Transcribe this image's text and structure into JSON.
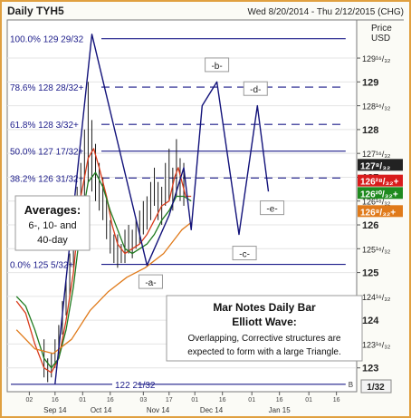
{
  "chart_data": {
    "type": "line",
    "title": "Daily TYH5",
    "date_range": "Wed 8/20/2014 - Thu 2/12/2015 (CHG)",
    "units_label": "Price\nUSD",
    "y_scale_note": "1/32",
    "ylim": [
      122.5,
      130.3
    ],
    "y_ticks": [
      {
        "value": 123,
        "label": "123"
      },
      {
        "value": 123.5,
        "label": "123¹⁶/₃₂"
      },
      {
        "value": 124,
        "label": "124"
      },
      {
        "value": 124.5,
        "label": "124¹⁶/₃₂"
      },
      {
        "value": 125,
        "label": "125"
      },
      {
        "value": 125.5,
        "label": "125¹⁶/₃₂"
      },
      {
        "value": 126,
        "label": "126"
      },
      {
        "value": 126.5,
        "label": "126¹⁶/₃₂"
      },
      {
        "value": 127,
        "label": "127"
      },
      {
        "value": 127.5,
        "label": "127¹⁶/₃₂"
      },
      {
        "value": 128,
        "label": "128"
      },
      {
        "value": 128.5,
        "label": "128¹⁶/₃₂"
      },
      {
        "value": 129,
        "label": "129"
      },
      {
        "value": 129.5,
        "label": "129¹⁶/₃₂"
      }
    ],
    "x_ticks": [
      {
        "day": 12,
        "label": "02"
      },
      {
        "day": 26,
        "label": "16"
      },
      {
        "day": 41,
        "label": "01"
      },
      {
        "day": 56,
        "label": "16"
      },
      {
        "day": 74,
        "label": "03"
      },
      {
        "day": 88,
        "label": "17"
      },
      {
        "day": 102,
        "label": "01"
      },
      {
        "day": 117,
        "label": "16"
      },
      {
        "day": 133,
        "label": "01"
      },
      {
        "day": 148,
        "label": "16"
      },
      {
        "day": 164,
        "label": "01"
      },
      {
        "day": 179,
        "label": "16"
      }
    ],
    "month_labels": [
      {
        "day": 26,
        "label": "Sep 14"
      },
      {
        "day": 51,
        "label": "Oct 14"
      },
      {
        "day": 82,
        "label": "Nov 14"
      },
      {
        "day": 111,
        "label": "Dec 14"
      },
      {
        "day": 148,
        "label": "Jan 15"
      }
    ],
    "xlim": [
      0,
      190
    ],
    "fib_levels": [
      {
        "pct": "100.0%",
        "price_label": "129 29/32",
        "value": 129.906,
        "style": "solid",
        "end_day": 184
      },
      {
        "pct": "78.6%",
        "price_label": "128 28/32+",
        "value": 128.891,
        "style": "dashed",
        "end_day": 184
      },
      {
        "pct": "61.8%",
        "price_label": "128 3/32+",
        "value": 128.109,
        "style": "dashed",
        "end_day": 184
      },
      {
        "pct": "50.0%",
        "price_label": "127 17/32+",
        "value": 127.547,
        "style": "solid",
        "end_day": 184
      },
      {
        "pct": "38.2%",
        "price_label": "126 31/32+",
        "value": 126.984,
        "style": "dashed",
        "end_day": 184
      },
      {
        "pct": "0.0%",
        "price_label": "125 5/32+",
        "value": 125.172,
        "style": "solid",
        "end_day": 184
      },
      {
        "pct": "",
        "price_label": "122 21/32",
        "value": 122.656,
        "style": "solid",
        "end_day": 184
      }
    ],
    "b_marker_label": "B",
    "series": [
      {
        "name": "Elliott wave path",
        "color": "#12127a",
        "points": [
          [
            26,
            122.66
          ],
          [
            46,
            130.0
          ],
          [
            76,
            125.15
          ],
          [
            88,
            126.2
          ],
          [
            96,
            127.2
          ],
          [
            100,
            125.9
          ],
          [
            106,
            128.5
          ],
          [
            114,
            129.0
          ],
          [
            126,
            125.8
          ],
          [
            136,
            128.5
          ],
          [
            142,
            126.7
          ]
        ]
      },
      {
        "name": "6-day average",
        "color": "#d93a1a",
        "points": [
          [
            5,
            124.4
          ],
          [
            10,
            124.15
          ],
          [
            15,
            123.5
          ],
          [
            20,
            123.0
          ],
          [
            24,
            122.9
          ],
          [
            28,
            123.2
          ],
          [
            32,
            124.0
          ],
          [
            36,
            125.0
          ],
          [
            40,
            126.6
          ],
          [
            44,
            127.4
          ],
          [
            47,
            127.6
          ],
          [
            50,
            127.2
          ],
          [
            54,
            126.6
          ],
          [
            57,
            126.0
          ],
          [
            60,
            125.6
          ],
          [
            64,
            125.4
          ],
          [
            68,
            125.5
          ],
          [
            72,
            125.6
          ],
          [
            76,
            125.8
          ],
          [
            80,
            126.1
          ],
          [
            84,
            126.4
          ],
          [
            88,
            126.5
          ],
          [
            91,
            127.0
          ],
          [
            93,
            127.2
          ],
          [
            95,
            126.9
          ],
          [
            97,
            126.6
          ],
          [
            100,
            126.6
          ]
        ]
      },
      {
        "name": "10-day average",
        "color": "#1e7a1e",
        "points": [
          [
            5,
            124.5
          ],
          [
            10,
            124.3
          ],
          [
            15,
            123.8
          ],
          [
            20,
            123.2
          ],
          [
            24,
            123.0
          ],
          [
            28,
            123.2
          ],
          [
            32,
            123.8
          ],
          [
            36,
            124.7
          ],
          [
            40,
            126.0
          ],
          [
            44,
            126.9
          ],
          [
            48,
            127.1
          ],
          [
            52,
            126.8
          ],
          [
            56,
            126.3
          ],
          [
            60,
            125.9
          ],
          [
            64,
            125.5
          ],
          [
            68,
            125.4
          ],
          [
            72,
            125.5
          ],
          [
            76,
            125.6
          ],
          [
            80,
            125.8
          ],
          [
            84,
            126.1
          ],
          [
            88,
            126.3
          ],
          [
            92,
            126.6
          ],
          [
            96,
            126.6
          ],
          [
            100,
            126.5
          ]
        ]
      },
      {
        "name": "40-day average",
        "color": "#e07a1a",
        "points": [
          [
            5,
            123.8
          ],
          [
            15,
            123.4
          ],
          [
            25,
            123.3
          ],
          [
            35,
            123.6
          ],
          [
            45,
            124.2
          ],
          [
            55,
            124.6
          ],
          [
            65,
            124.9
          ],
          [
            75,
            125.1
          ],
          [
            85,
            125.4
          ],
          [
            95,
            125.9
          ],
          [
            100,
            126.05
          ]
        ]
      }
    ],
    "ohlc_bars": [
      [
        20,
        123.6,
        122.8
      ],
      [
        22,
        123.2,
        122.7
      ],
      [
        24,
        123.3,
        122.8
      ],
      [
        26,
        123.6,
        123.0
      ],
      [
        28,
        123.9,
        123.3
      ],
      [
        30,
        124.4,
        123.7
      ],
      [
        32,
        124.9,
        124.1
      ],
      [
        34,
        125.4,
        124.5
      ],
      [
        36,
        126.2,
        125.1
      ],
      [
        38,
        126.8,
        125.7
      ],
      [
        40,
        127.3,
        126.1
      ],
      [
        42,
        128.0,
        126.6
      ],
      [
        44,
        129.0,
        126.9
      ],
      [
        46,
        128.2,
        126.7
      ],
      [
        48,
        127.7,
        126.5
      ],
      [
        50,
        127.3,
        126.3
      ],
      [
        52,
        127.0,
        126.1
      ],
      [
        54,
        126.6,
        125.7
      ],
      [
        56,
        126.1,
        125.4
      ],
      [
        58,
        125.8,
        125.2
      ],
      [
        60,
        125.8,
        125.1
      ],
      [
        62,
        125.6,
        125.2
      ],
      [
        64,
        125.9,
        125.2
      ],
      [
        66,
        126.0,
        125.4
      ],
      [
        68,
        125.9,
        125.3
      ],
      [
        70,
        126.1,
        125.5
      ],
      [
        72,
        126.3,
        125.6
      ],
      [
        74,
        126.5,
        125.8
      ],
      [
        76,
        126.6,
        125.9
      ],
      [
        78,
        126.9,
        126.1
      ],
      [
        80,
        127.2,
        126.4
      ],
      [
        82,
        126.9,
        126.1
      ],
      [
        84,
        126.8,
        126.0
      ],
      [
        86,
        127.3,
        126.4
      ],
      [
        88,
        127.6,
        126.5
      ],
      [
        90,
        127.2,
        126.3
      ],
      [
        92,
        127.8,
        126.6
      ],
      [
        94,
        127.4,
        126.5
      ],
      [
        96,
        127.3,
        126.4
      ]
    ],
    "price_tags": [
      {
        "label": "127⁸/₃₂",
        "value": 127.25,
        "color": "#222222"
      },
      {
        "label": "126²⁸/₃₂+",
        "value": 126.92,
        "color": "#d91c1c"
      },
      {
        "label": "126²⁰/₃₂+",
        "value": 126.66,
        "color": "#1e8a1e"
      },
      {
        "label": "126⁸/₃₂+",
        "value": 126.28,
        "color": "#e07a1a"
      }
    ],
    "wave_labels": [
      {
        "label": "-a-",
        "day": 78,
        "value": 124.8
      },
      {
        "label": "-b-",
        "day": 114,
        "value": 129.35
      },
      {
        "label": "-c-",
        "day": 129,
        "value": 125.4
      },
      {
        "label": "-d-",
        "day": 135,
        "value": 128.85
      },
      {
        "label": "-e-",
        "day": 144,
        "value": 126.35
      }
    ],
    "annotations": {
      "averages_box": [
        "Averages:",
        "6-, 10- and",
        "40-day"
      ],
      "headline": [
        "Mar Notes Daily Bar",
        "Elliott Wave:"
      ],
      "body": [
        "Overlapping, Corrective structures are",
        "expected to form with a large Triangle."
      ]
    }
  }
}
